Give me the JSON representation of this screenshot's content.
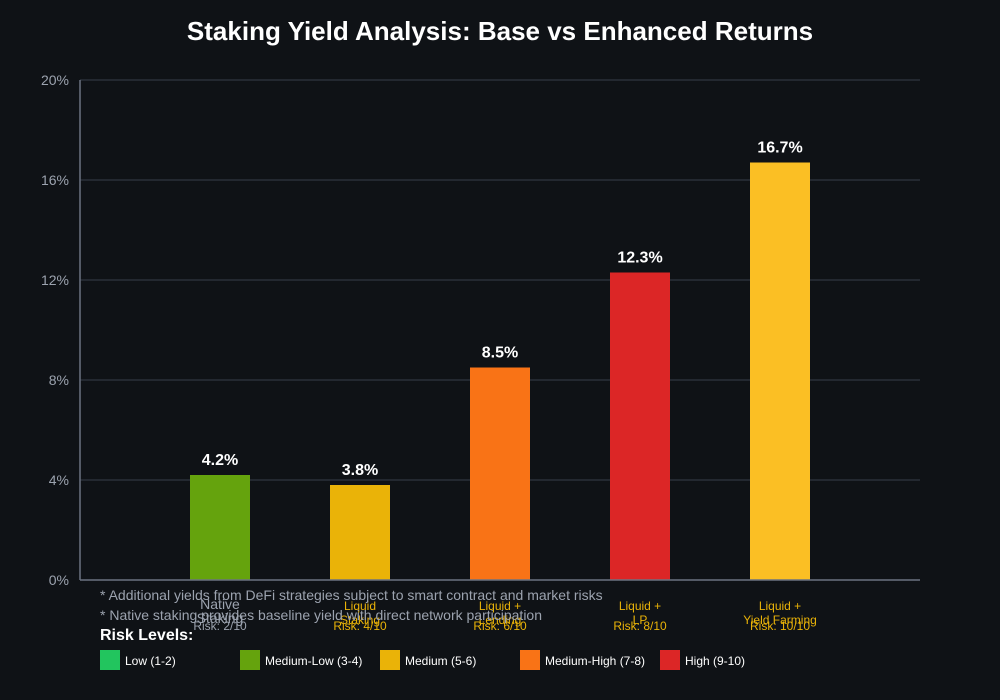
{
  "chart_data": {
    "type": "bar",
    "title": "Staking Yield Analysis: Base vs Enhanced Returns",
    "xlabel": "",
    "ylabel": "",
    "ylim": [
      0,
      20
    ],
    "yticks": [
      "0%",
      "4%",
      "8%",
      "12%",
      "16%",
      "20%"
    ],
    "yticks_values": [
      0,
      4,
      8,
      12,
      16,
      20
    ],
    "grid": true,
    "categories": [
      {
        "lines": [
          "Native",
          "Staking"
        ],
        "risk": "Risk: 2/10"
      },
      {
        "lines": [
          "Liquid",
          "Staking"
        ],
        "risk": "Risk: 4/10"
      },
      {
        "lines": [
          "Liquid +",
          "Lending"
        ],
        "risk": "Risk: 6/10"
      },
      {
        "lines": [
          "Liquid +",
          "LP"
        ],
        "risk": "Risk: 8/10"
      },
      {
        "lines": [
          "Liquid +",
          "Yield Farming"
        ],
        "risk": "Risk: 10/10"
      }
    ],
    "values": [
      4.2,
      3.8,
      8.5,
      12.3,
      16.7
    ],
    "value_labels": [
      "4.2%",
      "3.8%",
      "8.5%",
      "12.3%",
      "16.7%"
    ],
    "bar_colors": [
      "#65a30d",
      "#eab308",
      "#f97316",
      "#dc2626",
      "#fbbf24"
    ],
    "category_label_colors": [
      "#9ca3af",
      "#eab308",
      "#eab308",
      "#eab308",
      "#eab308"
    ],
    "notes": [
      "* Additional yields from DeFi strategies subject to smart contract and market risks",
      "* Native staking provides baseline yield with direct network participation"
    ],
    "legend": {
      "title": "Risk Levels:",
      "items": [
        {
          "label": "Low (1-2)",
          "color": "#22c55e"
        },
        {
          "label": "Medium-Low (3-4)",
          "color": "#65a30d"
        },
        {
          "label": "Medium (5-6)",
          "color": "#eab308"
        },
        {
          "label": "Medium-High (7-8)",
          "color": "#f97316"
        },
        {
          "label": "High (9-10)",
          "color": "#dc2626"
        }
      ]
    }
  },
  "colors": {
    "background": "#0f1216",
    "grid": "#2a2f38",
    "axis": "#6b7280",
    "tick_text": "#9ca3af",
    "title": "#ffffff",
    "note_text": "#9ca3af"
  }
}
